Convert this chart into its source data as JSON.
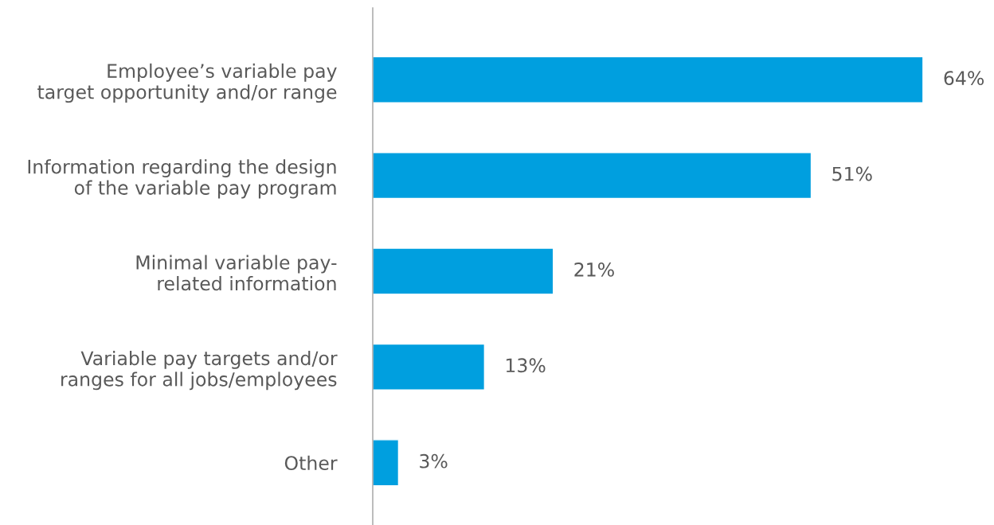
{
  "chart_data": {
    "type": "bar",
    "orientation": "horizontal",
    "categories": [
      "Employee’s variable pay\ntarget opportunity and/or range",
      "Information regarding the design\nof the variable pay program",
      "Minimal variable pay-\nrelated information",
      "Variable pay targets and/or\nranges for all jobs/employees",
      "Other"
    ],
    "values": [
      64,
      51,
      21,
      13,
      3
    ],
    "color": "#009fdf",
    "value_labels": [
      "64%",
      "51%",
      "21%",
      "13%",
      "3%"
    ],
    "tick_labels": "y",
    "grid": false,
    "legend": false
  }
}
